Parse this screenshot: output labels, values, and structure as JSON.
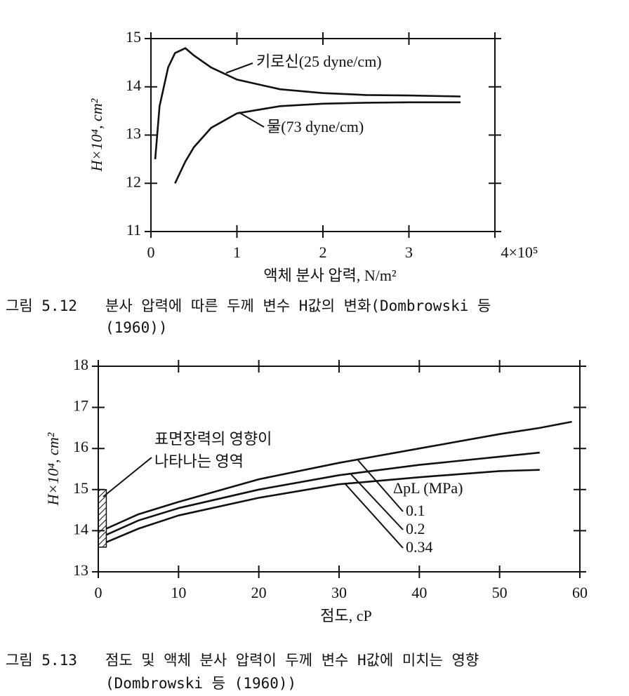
{
  "chart_data": [
    {
      "type": "line",
      "x_label": "액체 분사 압력, N/m²",
      "y_label": "H×10⁴, cm²",
      "caption_number": "그림 5.12",
      "caption": [
        "분사 압력에 따른 두께 변수 H값의 변화(Dombrowski 등",
        "(1960))"
      ],
      "x": [
        0.05,
        0.1,
        0.2,
        0.28,
        0.4,
        0.5,
        0.7,
        1.0,
        1.5,
        2.0,
        2.5,
        3.0,
        3.6
      ],
      "series": [
        {
          "name": "키로신(25 dyne/cm)",
          "color": "#111111",
          "values": [
            12.5,
            13.6,
            14.4,
            14.7,
            14.8,
            14.65,
            14.4,
            14.15,
            13.95,
            13.87,
            13.83,
            13.82,
            13.8
          ]
        },
        {
          "name": "물(73 dyne/cm)",
          "color": "#111111",
          "values": [
            null,
            null,
            null,
            12.0,
            12.45,
            12.75,
            13.15,
            13.45,
            13.6,
            13.65,
            13.67,
            13.68,
            13.68
          ]
        }
      ],
      "xlim": [
        0,
        4
      ],
      "xticks": [
        0,
        1,
        2,
        3,
        {
          "value": 4,
          "label": "4×10⁵"
        }
      ],
      "ylim": [
        11,
        15
      ],
      "yticks": [
        11,
        12,
        13,
        14,
        15
      ]
    },
    {
      "type": "line",
      "x_label": "점도, cP",
      "y_label": "H×10⁴, cm²",
      "caption_number": "그림 5.13",
      "caption": [
        "점도 및 액체 분사 압력이 두께 변수 H값에 미치는 영향",
        "(Dombrowski 등 (1960))"
      ],
      "annotation": [
        "표면장력의 영향이",
        "나타나는 영역"
      ],
      "legend_title": "ΔpL (MPa)",
      "shaded_region": {
        "x": [
          0,
          1
        ],
        "y": [
          13.6,
          15
        ]
      },
      "x": [
        1,
        5,
        10,
        20,
        30,
        40,
        50,
        55,
        59
      ],
      "series": [
        {
          "name": "0.1",
          "color": "#111111",
          "values": [
            14.05,
            14.4,
            14.7,
            15.25,
            15.65,
            16.0,
            16.35,
            16.5,
            16.65
          ]
        },
        {
          "name": "0.2",
          "color": "#111111",
          "values": [
            13.9,
            14.25,
            14.55,
            15.0,
            15.35,
            15.6,
            15.8,
            15.9,
            null
          ]
        },
        {
          "name": "0.34",
          "color": "#111111",
          "values": [
            13.72,
            14.05,
            14.37,
            14.8,
            15.13,
            15.3,
            15.45,
            15.48,
            null
          ]
        }
      ],
      "xlim": [
        0,
        60
      ],
      "xticks": [
        0,
        10,
        20,
        30,
        40,
        50,
        60
      ],
      "ylim": [
        13,
        18
      ],
      "yticks": [
        13,
        14,
        15,
        16,
        17,
        18
      ]
    }
  ]
}
